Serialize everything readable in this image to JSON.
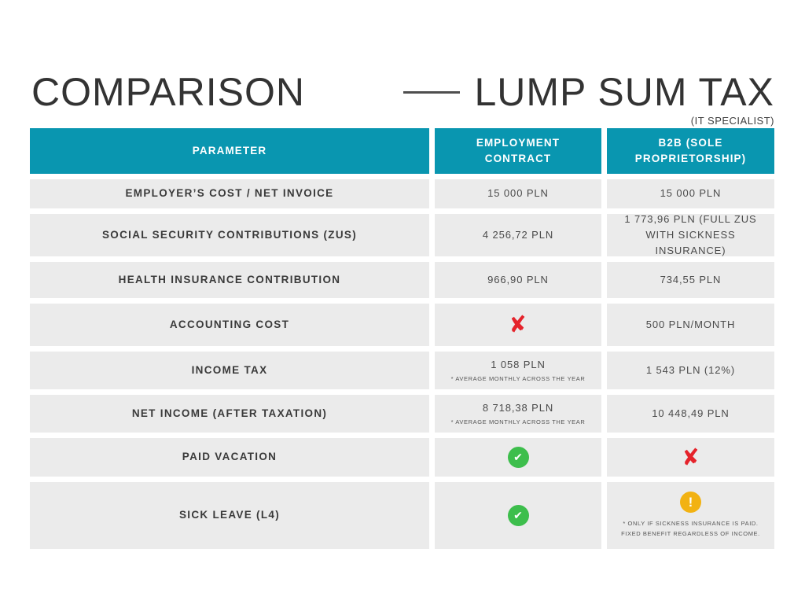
{
  "header": {
    "title_left": "COMPARISON",
    "title_right": "LUMP SUM TAX",
    "subtitle_right": "(IT SPECIALIST)"
  },
  "table": {
    "columns": [
      {
        "label": "PARAMETER"
      },
      {
        "label": "EMPLOYMENT CONTRACT"
      },
      {
        "label": "B2B (SOLE PROPRIETORSHIP)"
      }
    ],
    "rows": [
      {
        "parameter": "EMPLOYER’S COST / NET INVOICE",
        "employment": {
          "value": "15 000 PLN"
        },
        "b2b": {
          "value": "15 000 PLN"
        }
      },
      {
        "parameter": "SOCIAL SECURITY CONTRIBUTIONS (ZUS)",
        "employment": {
          "value": "4 256,72 PLN"
        },
        "b2b": {
          "value": "1 773,96 PLN (FULL ZUS WITH SICKNESS INSURANCE)"
        }
      },
      {
        "parameter": "HEALTH INSURANCE CONTRIBUTION",
        "employment": {
          "value": "966,90 PLN"
        },
        "b2b": {
          "value": "734,55 PLN"
        }
      },
      {
        "parameter": "ACCOUNTING COST",
        "employment": {
          "icon": "cross"
        },
        "b2b": {
          "value": "500 PLN/MONTH"
        }
      },
      {
        "parameter": "INCOME TAX",
        "employment": {
          "value": "1 058 PLN",
          "note": "* AVERAGE MONTHLY ACROSS THE YEAR"
        },
        "b2b": {
          "value": "1 543 PLN (12%)"
        }
      },
      {
        "parameter": "NET INCOME (AFTER TAXATION)",
        "employment": {
          "value": "8 718,38 PLN",
          "note": "* AVERAGE MONTHLY ACROSS THE YEAR"
        },
        "b2b": {
          "value": "10 448,49 PLN"
        }
      },
      {
        "parameter": "PAID VACATION",
        "employment": {
          "icon": "check"
        },
        "b2b": {
          "icon": "cross"
        }
      },
      {
        "parameter": "SICK LEAVE (L4)",
        "employment": {
          "icon": "check"
        },
        "b2b": {
          "icon": "warning",
          "note": "* ONLY IF SICKNESS INSURANCE IS PAID.\nFIXED BENEFIT REGARDLESS OF INCOME."
        }
      }
    ]
  },
  "colors": {
    "accent_teal": "#0996B0",
    "row_gray": "#EBEBEB",
    "check_green": "#3DBE4C",
    "cross_red": "#E5232B",
    "warning_amber": "#F2B212",
    "title_color": "#333333"
  }
}
